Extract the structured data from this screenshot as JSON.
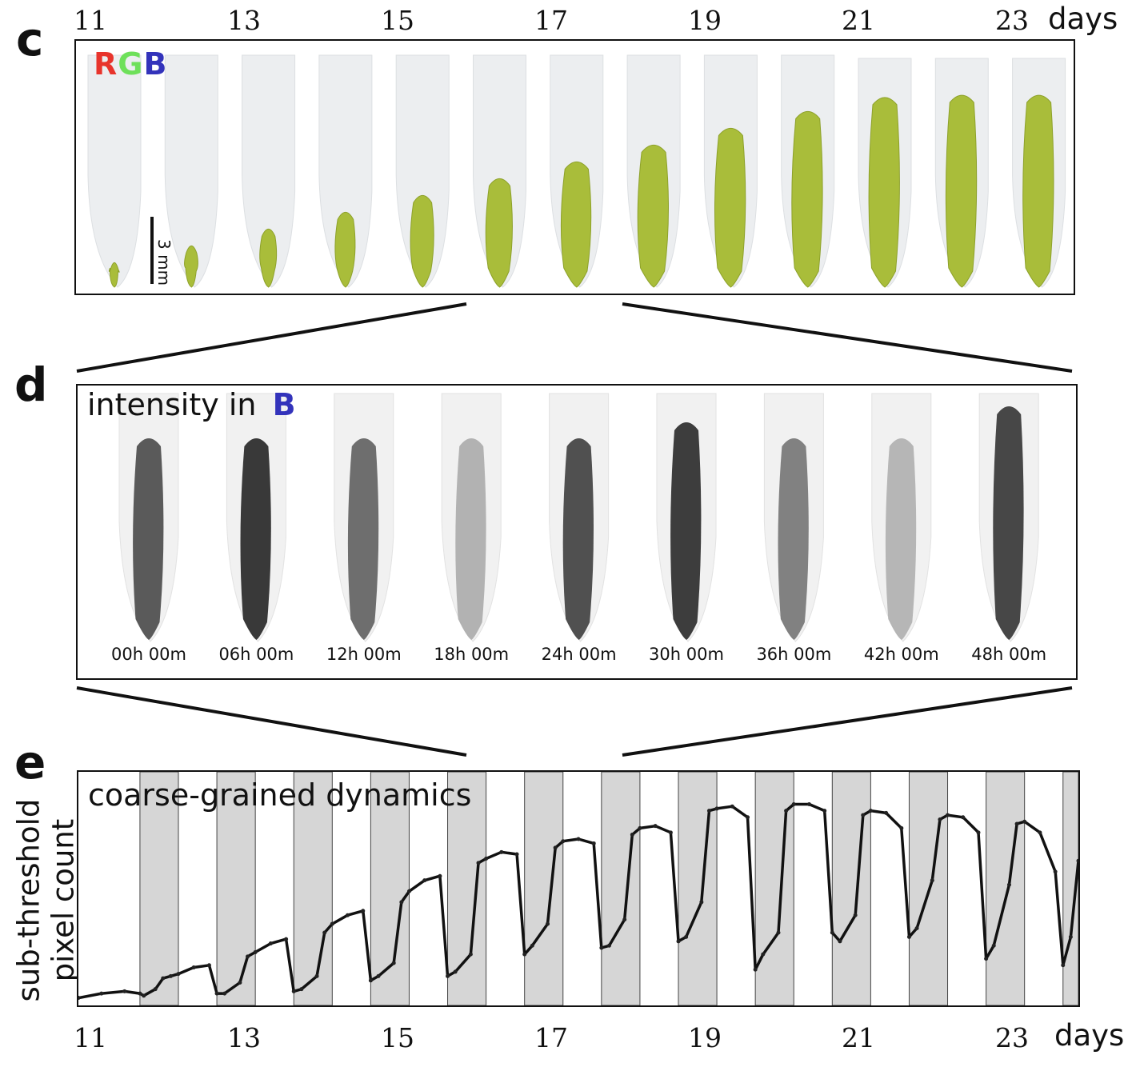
{
  "panels": {
    "c": {
      "letter": "c",
      "channels": [
        {
          "text": "R",
          "color": "#e8342c"
        },
        {
          "text": "G",
          "color": "#6ee05a"
        },
        {
          "text": "B",
          "color": "#3333bb"
        }
      ],
      "scale_bar": "3 mm",
      "leaf_count": 13
    },
    "d": {
      "letter": "d",
      "label_prefix": "intensity in",
      "label_channel": "B",
      "label_channel_color": "#3333bb",
      "frames": [
        {
          "time": "00h 00m",
          "darkness": 0.75
        },
        {
          "time": "06h 00m",
          "darkness": 0.92
        },
        {
          "time": "12h 00m",
          "darkness": 0.65
        },
        {
          "time": "18h 00m",
          "darkness": 0.3
        },
        {
          "time": "24h 00m",
          "darkness": 0.8
        },
        {
          "time": "30h 00m",
          "darkness": 0.9
        },
        {
          "time": "36h 00m",
          "darkness": 0.55
        },
        {
          "time": "42h 00m",
          "darkness": 0.28
        },
        {
          "time": "48h 00m",
          "darkness": 0.85
        }
      ]
    },
    "e": {
      "letter": "e",
      "label": "coarse-grained dynamics",
      "ylabel_line1": "sub-threshold",
      "ylabel_line2": "pixel count"
    }
  },
  "axis": {
    "top_ticks": [
      "11",
      "13",
      "15",
      "17",
      "19",
      "21",
      "23"
    ],
    "bottom_ticks": [
      "11",
      "13",
      "15",
      "17",
      "19",
      "21",
      "23"
    ],
    "unit": "days"
  },
  "chart_data": {
    "type": "line",
    "x_range": [
      10.7,
      23.7
    ],
    "ylim": [
      0,
      1
    ],
    "dark_periods": [
      [
        11.5,
        12.0
      ],
      [
        12.5,
        13.0
      ],
      [
        13.5,
        14.0
      ],
      [
        14.5,
        15.0
      ],
      [
        15.5,
        16.0
      ],
      [
        16.5,
        17.0
      ],
      [
        17.5,
        18.0
      ],
      [
        18.5,
        19.0
      ],
      [
        19.5,
        20.0
      ],
      [
        20.5,
        21.0
      ],
      [
        21.5,
        22.0
      ],
      [
        22.5,
        23.0
      ],
      [
        23.5,
        23.7
      ]
    ],
    "x": [
      10.7,
      11.0,
      11.3,
      11.5,
      11.55,
      11.7,
      11.8,
      11.9,
      12.0,
      12.2,
      12.4,
      12.5,
      12.6,
      12.8,
      12.9,
      13.0,
      13.2,
      13.4,
      13.5,
      13.6,
      13.8,
      13.9,
      14.0,
      14.2,
      14.4,
      14.5,
      14.6,
      14.8,
      14.9,
      15.0,
      15.2,
      15.4,
      15.5,
      15.6,
      15.8,
      15.9,
      16.0,
      16.2,
      16.4,
      16.5,
      16.6,
      16.8,
      16.9,
      17.0,
      17.2,
      17.4,
      17.5,
      17.6,
      17.8,
      17.9,
      18.0,
      18.2,
      18.4,
      18.5,
      18.6,
      18.8,
      18.9,
      19.0,
      19.2,
      19.4,
      19.5,
      19.6,
      19.8,
      19.9,
      20.0,
      20.2,
      20.4,
      20.5,
      20.6,
      20.8,
      20.9,
      21.0,
      21.2,
      21.4,
      21.5,
      21.6,
      21.8,
      21.9,
      22.0,
      22.2,
      22.4,
      22.5,
      22.6,
      22.8,
      22.9,
      23.0,
      23.2,
      23.4,
      23.5,
      23.6,
      23.7
    ],
    "y": [
      0.02,
      0.04,
      0.05,
      0.04,
      0.03,
      0.06,
      0.11,
      0.12,
      0.13,
      0.16,
      0.17,
      0.04,
      0.04,
      0.09,
      0.21,
      0.23,
      0.27,
      0.29,
      0.05,
      0.06,
      0.12,
      0.32,
      0.36,
      0.4,
      0.42,
      0.1,
      0.12,
      0.18,
      0.46,
      0.51,
      0.56,
      0.58,
      0.12,
      0.14,
      0.22,
      0.64,
      0.66,
      0.69,
      0.68,
      0.22,
      0.26,
      0.36,
      0.71,
      0.74,
      0.75,
      0.73,
      0.25,
      0.26,
      0.38,
      0.77,
      0.8,
      0.81,
      0.78,
      0.28,
      0.3,
      0.46,
      0.88,
      0.89,
      0.9,
      0.85,
      0.15,
      0.22,
      0.32,
      0.88,
      0.91,
      0.91,
      0.88,
      0.32,
      0.28,
      0.4,
      0.86,
      0.88,
      0.87,
      0.8,
      0.3,
      0.34,
      0.56,
      0.84,
      0.86,
      0.85,
      0.78,
      0.2,
      0.26,
      0.54,
      0.82,
      0.83,
      0.78,
      0.6,
      0.17,
      0.3,
      0.65
    ]
  }
}
